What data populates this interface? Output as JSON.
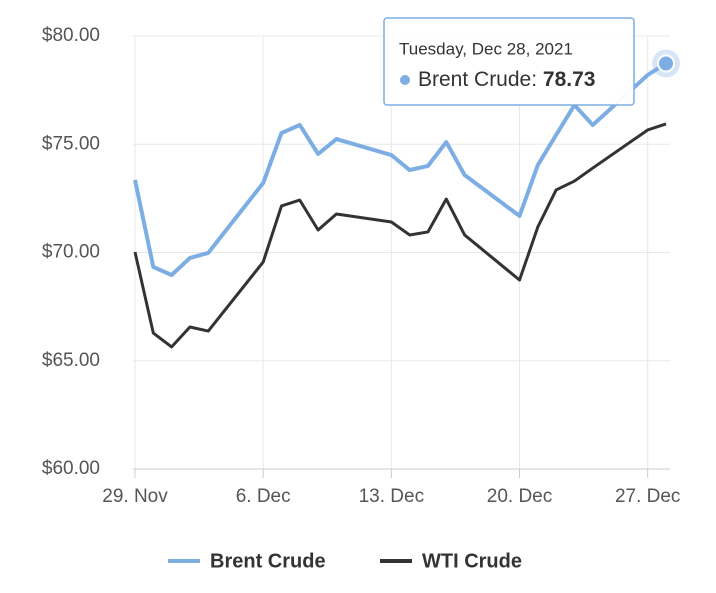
{
  "chart_data": {
    "type": "line",
    "x": [
      "2021-11-29",
      "2021-11-30",
      "2021-12-01",
      "2021-12-02",
      "2021-12-03",
      "2021-12-06",
      "2021-12-07",
      "2021-12-08",
      "2021-12-09",
      "2021-12-10",
      "2021-12-13",
      "2021-12-14",
      "2021-12-15",
      "2021-12-16",
      "2021-12-17",
      "2021-12-20",
      "2021-12-21",
      "2021-12-22",
      "2021-12-23",
      "2021-12-24",
      "2021-12-27",
      "2021-12-28"
    ],
    "series": [
      {
        "name": "Brent Crude",
        "color": "#7cade3",
        "values": [
          73.35,
          69.33,
          68.96,
          69.75,
          69.98,
          73.21,
          75.52,
          75.89,
          74.55,
          75.24,
          74.5,
          73.81,
          74.0,
          75.1,
          73.58,
          71.69,
          74.04,
          75.43,
          76.81,
          75.89,
          78.2,
          78.73
        ]
      },
      {
        "name": "WTI Crude",
        "color": "#333333",
        "values": [
          70.02,
          66.28,
          65.64,
          66.56,
          66.37,
          69.56,
          72.15,
          72.42,
          71.04,
          71.78,
          71.41,
          70.81,
          70.95,
          72.47,
          70.81,
          68.73,
          71.18,
          72.89,
          73.3,
          73.9,
          75.66,
          75.94
        ]
      }
    ],
    "xlim": [
      "2021-11-29",
      "2021-12-28"
    ],
    "xticks": [
      {
        "value": "2021-11-29",
        "label": "29. Nov"
      },
      {
        "value": "2021-12-06",
        "label": "6. Dec"
      },
      {
        "value": "2021-12-13",
        "label": "13. Dec"
      },
      {
        "value": "2021-12-20",
        "label": "20. Dec"
      },
      {
        "value": "2021-12-27",
        "label": "27. Dec"
      }
    ],
    "ylim": [
      60,
      80
    ],
    "yticks": [
      {
        "value": 60,
        "label": "$60.00"
      },
      {
        "value": 65,
        "label": "$65.00"
      },
      {
        "value": 70,
        "label": "$70.00"
      },
      {
        "value": 75,
        "label": "$75.00"
      },
      {
        "value": 80,
        "label": "$80.00"
      }
    ],
    "grid": true,
    "tooltip": {
      "title": "Tuesday, Dec 28, 2021",
      "label": "Brent Crude:"
    }
  }
}
